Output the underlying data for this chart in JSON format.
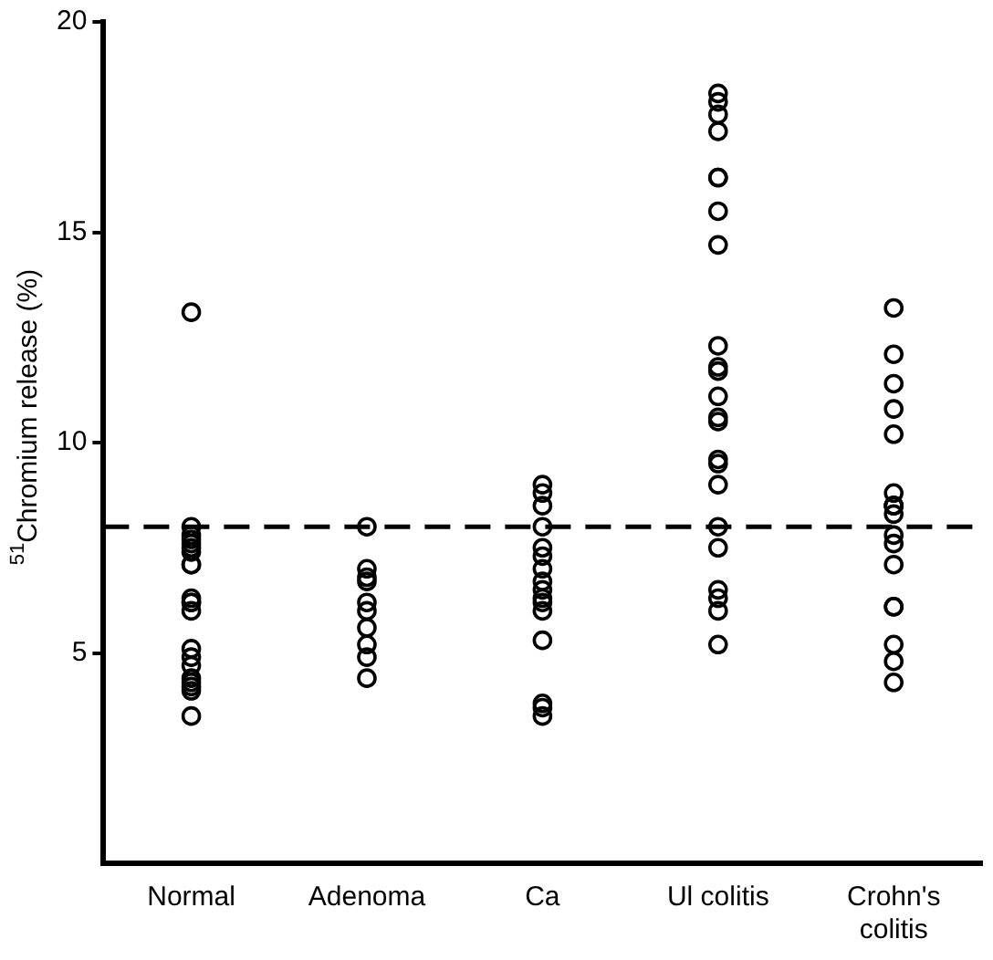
{
  "chart_data": {
    "type": "scatter",
    "ylabel": "$^{51}$Chromium release (%)",
    "categories": [
      "Normal",
      "Adenoma",
      "Ca",
      "Ul colitis",
      "Crohn's colitis"
    ],
    "ylim": [
      0,
      20
    ],
    "yticks": [
      5,
      10,
      15,
      20
    ],
    "grid": false,
    "legend": false,
    "marker": "circle",
    "ref_lines": [
      {
        "axis": "y",
        "value": 8,
        "line_style": "dashed",
        "color": "#000000"
      }
    ],
    "series": [
      {
        "color": "#000000",
        "x": [
          "Normal",
          "Normal",
          "Normal",
          "Normal",
          "Normal",
          "Normal",
          "Normal",
          "Normal",
          "Normal",
          "Normal",
          "Normal",
          "Normal",
          "Normal",
          "Normal",
          "Normal",
          "Normal",
          "Normal",
          "Normal",
          "Normal",
          "Normal",
          "Normal",
          "Adenoma",
          "Adenoma",
          "Adenoma",
          "Adenoma",
          "Adenoma",
          "Adenoma",
          "Adenoma",
          "Adenoma",
          "Adenoma",
          "Adenoma",
          "Ca",
          "Ca",
          "Ca",
          "Ca",
          "Ca",
          "Ca",
          "Ca",
          "Ca",
          "Ca",
          "Ca",
          "Ca",
          "Ca",
          "Ca",
          "Ca",
          "Ca",
          "Ca",
          "Ul colitis",
          "Ul colitis",
          "Ul colitis",
          "Ul colitis",
          "Ul colitis",
          "Ul colitis",
          "Ul colitis",
          "Ul colitis",
          "Ul colitis",
          "Ul colitis",
          "Ul colitis",
          "Ul colitis",
          "Ul colitis",
          "Ul colitis",
          "Ul colitis",
          "Ul colitis",
          "Ul colitis",
          "Ul colitis",
          "Ul colitis",
          "Ul colitis",
          "Ul colitis",
          "Ul colitis",
          "Ul colitis",
          "Crohn's colitis",
          "Crohn's colitis",
          "Crohn's colitis",
          "Crohn's colitis",
          "Crohn's colitis",
          "Crohn's colitis",
          "Crohn's colitis",
          "Crohn's colitis",
          "Crohn's colitis",
          "Crohn's colitis",
          "Crohn's colitis",
          "Crohn's colitis",
          "Crohn's colitis",
          "Crohn's colitis",
          "Crohn's colitis",
          "Crohn's colitis",
          "Crohn's colitis",
          "Crohn's colitis"
        ],
        "values": [
          13.1,
          8.0,
          7.8,
          7.7,
          7.6,
          7.5,
          7.4,
          7.1,
          7.1,
          6.3,
          6.2,
          6.2,
          6.0,
          5.1,
          4.9,
          4.7,
          4.4,
          4.3,
          4.2,
          4.1,
          3.5,
          8.0,
          7.0,
          6.8,
          6.7,
          6.2,
          6.0,
          5.6,
          5.2,
          4.9,
          4.4,
          9.0,
          8.8,
          8.5,
          8.0,
          7.5,
          7.3,
          7.0,
          6.7,
          6.5,
          6.3,
          6.2,
          6.0,
          5.3,
          3.8,
          3.7,
          3.5,
          18.3,
          18.1,
          17.8,
          17.4,
          16.3,
          16.3,
          15.5,
          14.7,
          12.3,
          11.8,
          11.7,
          11.1,
          10.6,
          10.5,
          9.6,
          9.5,
          9.0,
          8.0,
          7.5,
          6.5,
          6.3,
          6.0,
          5.2,
          13.2,
          12.1,
          11.4,
          10.8,
          10.2,
          8.8,
          8.5,
          8.5,
          8.5,
          8.3,
          7.8,
          7.6,
          7.1,
          6.1,
          6.1,
          5.2,
          4.8,
          4.3
        ]
      }
    ]
  }
}
